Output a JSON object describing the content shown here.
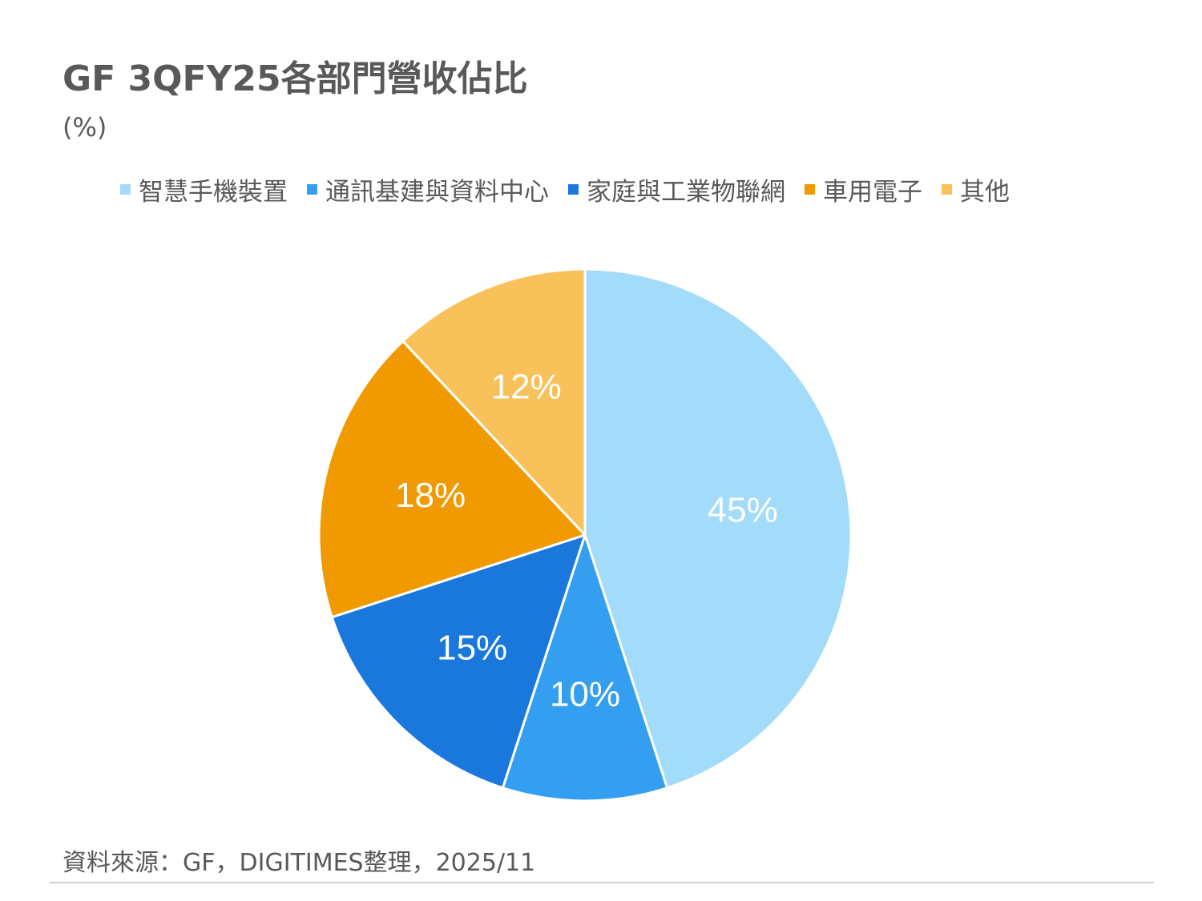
{
  "chart_data": {
    "type": "pie",
    "title": "GF 3QFY25各部門營收佔比",
    "subtitle": "(%)",
    "categories": [
      "智慧手機裝置",
      "通訊基建與資料中心",
      "家庭與工業物聯網",
      "車用電子",
      "其他"
    ],
    "values": [
      45,
      10,
      15,
      18,
      12
    ],
    "value_labels": [
      "45%",
      "10%",
      "15%",
      "18%",
      "12%"
    ],
    "colors": [
      "#a3dbfa",
      "#349ff0",
      "#1a78dc",
      "#f09a00",
      "#f9c15a"
    ],
    "legend_position": "top",
    "start_angle": "12-o'clock",
    "direction": "clockwise"
  },
  "source": "資料來源：GF，DIGITIMES整理，2025/11"
}
